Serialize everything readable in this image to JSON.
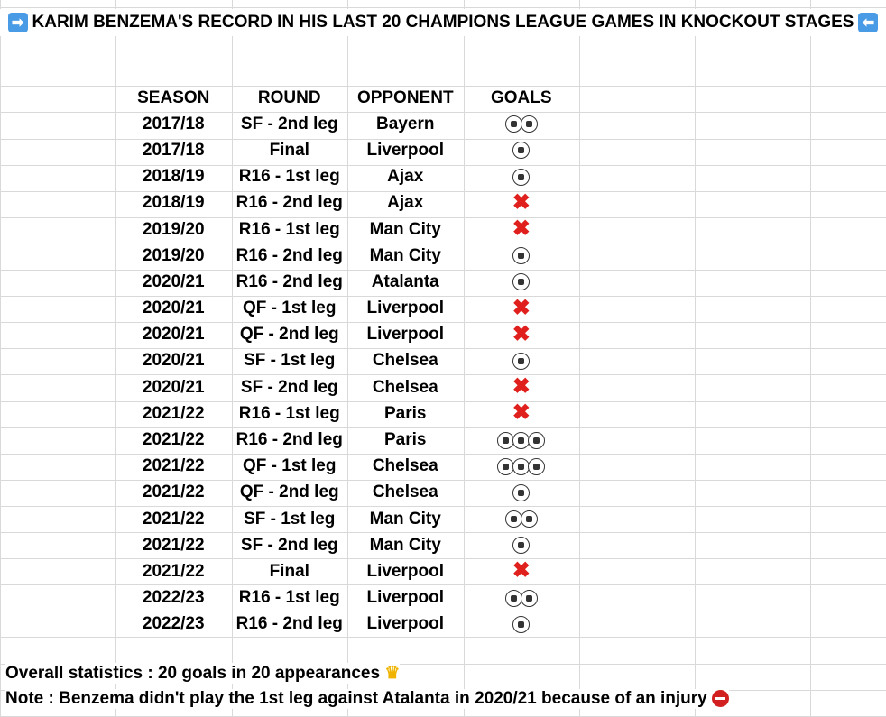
{
  "title": {
    "left_icon": "right-arrow-icon",
    "text": "KARIM BENZEMA'S RECORD IN HIS LAST 20 CHAMPIONS LEAGUE GAMES IN KNOCKOUT STAGES",
    "right_icon": "left-arrow-icon"
  },
  "headers": [
    "SEASON",
    "ROUND",
    "OPPONENT",
    "GOALS"
  ],
  "rows": [
    {
      "season": "2017/18",
      "round": "SF - 2nd leg",
      "opponent": "Bayern",
      "goals": 2
    },
    {
      "season": "2017/18",
      "round": "Final",
      "opponent": "Liverpool",
      "goals": 1
    },
    {
      "season": "2018/19",
      "round": "R16 - 1st leg",
      "opponent": "Ajax",
      "goals": 1
    },
    {
      "season": "2018/19",
      "round": "R16 - 2nd leg",
      "opponent": "Ajax",
      "goals": 0
    },
    {
      "season": "2019/20",
      "round": "R16 - 1st leg",
      "opponent": "Man City",
      "goals": 0
    },
    {
      "season": "2019/20",
      "round": "R16 - 2nd leg",
      "opponent": "Man City",
      "goals": 1
    },
    {
      "season": "2020/21",
      "round": "R16 - 2nd leg",
      "opponent": "Atalanta",
      "goals": 1
    },
    {
      "season": "2020/21",
      "round": "QF - 1st leg",
      "opponent": "Liverpool",
      "goals": 0
    },
    {
      "season": "2020/21",
      "round": "QF - 2nd leg",
      "opponent": "Liverpool",
      "goals": 0
    },
    {
      "season": "2020/21",
      "round": "SF - 1st leg",
      "opponent": "Chelsea",
      "goals": 1
    },
    {
      "season": "2020/21",
      "round": "SF - 2nd leg",
      "opponent": "Chelsea",
      "goals": 0
    },
    {
      "season": "2021/22",
      "round": "R16 - 1st leg",
      "opponent": "Paris",
      "goals": 0
    },
    {
      "season": "2021/22",
      "round": "R16 - 2nd leg",
      "opponent": "Paris",
      "goals": 3
    },
    {
      "season": "2021/22",
      "round": "QF - 1st leg",
      "opponent": "Chelsea",
      "goals": 3
    },
    {
      "season": "2021/22",
      "round": "QF - 2nd leg",
      "opponent": "Chelsea",
      "goals": 1
    },
    {
      "season": "2021/22",
      "round": "SF - 1st leg",
      "opponent": "Man City",
      "goals": 2
    },
    {
      "season": "2021/22",
      "round": "SF - 2nd leg",
      "opponent": "Man City",
      "goals": 1
    },
    {
      "season": "2021/22",
      "round": "Final",
      "opponent": "Liverpool",
      "goals": 0
    },
    {
      "season": "2022/23",
      "round": "R16 - 1st leg",
      "opponent": "Liverpool",
      "goals": 2
    },
    {
      "season": "2022/23",
      "round": "R16 - 2nd leg",
      "opponent": "Liverpool",
      "goals": 1
    }
  ],
  "footer": {
    "overall": "Overall statistics : 20 goals in 20 appearances",
    "overall_icon": "crown-icon",
    "note": "Note : Benzema didn't play the 1st leg against Atalanta in 2020/21 because of an injury",
    "note_icon": "no-entry-icon"
  },
  "colors": {
    "cross": "#e0201c",
    "arrow_box": "#4a9be6",
    "grid": "#d9d9d9"
  }
}
